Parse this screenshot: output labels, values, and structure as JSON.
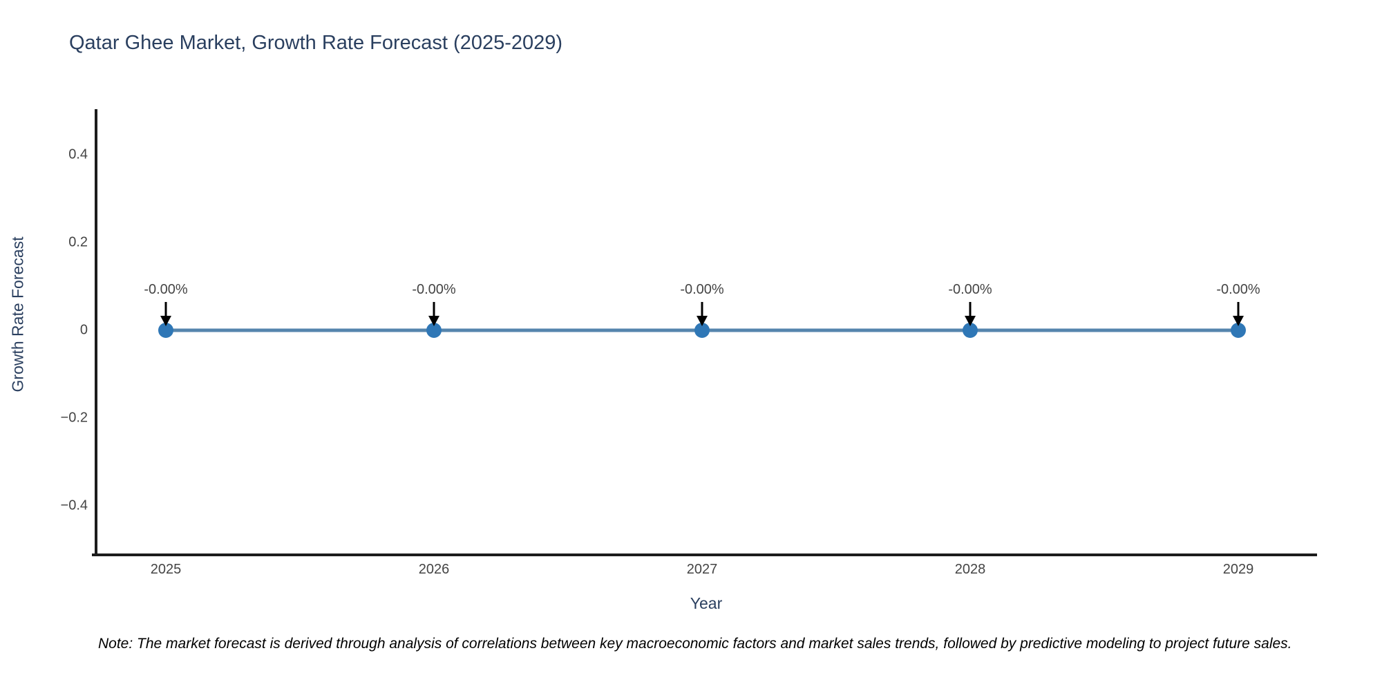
{
  "chart_data": {
    "type": "line",
    "title": "Qatar Ghee Market, Growth Rate Forecast (2025-2029)",
    "xlabel": "Year",
    "ylabel": "Growth Rate Forecast",
    "categories": [
      "2025",
      "2026",
      "2027",
      "2028",
      "2029"
    ],
    "series": [
      {
        "name": "Growth Rate Forecast",
        "values": [
          0,
          0,
          0,
          0,
          0
        ]
      }
    ],
    "point_labels": [
      "-0.00%",
      "-0.00%",
      "-0.00%",
      "-0.00%",
      "-0.00%"
    ],
    "yticks": [
      {
        "label": "0.4",
        "value": 0.4
      },
      {
        "label": "0.2",
        "value": 0.2
      },
      {
        "label": "0",
        "value": 0
      },
      {
        "label": "−0.2",
        "value": -0.2
      },
      {
        "label": "−0.4",
        "value": -0.4
      }
    ],
    "ylim": [
      -0.51,
      0.51
    ],
    "grid": false,
    "legend": "none",
    "annotation_arrows": true,
    "colors": {
      "line": "#5585ad",
      "marker": "#2f77b6",
      "axis": "#1c1c1c",
      "arrow": "#000000",
      "title_text": "#2a3f5f",
      "tick_text": "#444444",
      "annotation_text": "#444444",
      "note_text": "#000000"
    }
  },
  "note": {
    "text": "Note: The market forecast is derived through analysis of correlations between key macroeconomic factors and market sales trends, followed by predictive modeling to project future sales."
  }
}
